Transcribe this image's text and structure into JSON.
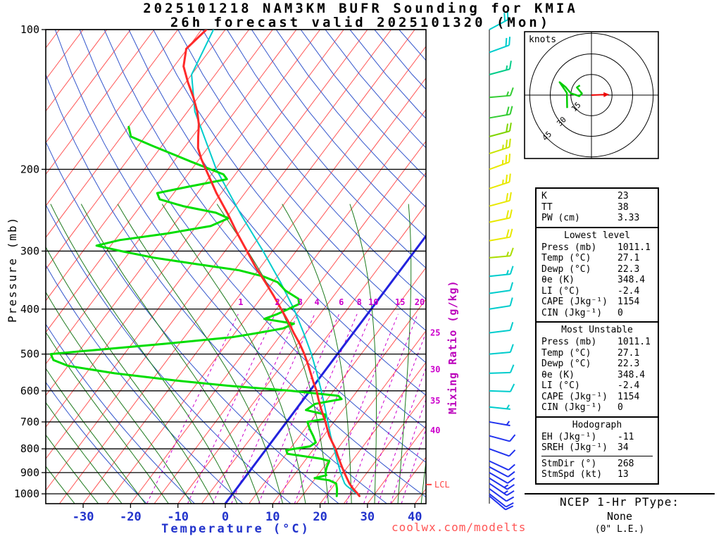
{
  "title": {
    "line1": "2025101218 NAM3KM BUFR Sounding for KMIA",
    "line2": "26h forecast valid 2025101320 (Mon)"
  },
  "watermark": "coolwx.com/modelts",
  "axes": {
    "pressure_label": "Pressure (mb)",
    "temperature_label": "Temperature (°C)",
    "mixing_ratio_label": "Mixing Ratio (g/kg)",
    "pressure_ticks": [
      100,
      200,
      300,
      400,
      500,
      600,
      700,
      800,
      900,
      1000
    ],
    "temperature_ticks": [
      -30,
      -20,
      -10,
      0,
      10,
      20,
      30,
      40
    ],
    "lcl_label": "LCL"
  },
  "chart_data": {
    "type": "line",
    "diagram": "skew-t log-p sounding",
    "pressure_range_mb": [
      100,
      1050
    ],
    "temperature_axis_c": [
      -30,
      40
    ],
    "highlight_isotherm_c": 0,
    "lcl_pressure_mb": 955,
    "mixing_ratio_lines_g_kg": [
      1,
      2,
      3,
      4,
      6,
      8,
      10,
      15,
      20,
      25,
      30,
      35,
      40
    ],
    "series": [
      {
        "name": "temperature",
        "color": "#FF2A2A",
        "width": 3,
        "points_p_t": [
          [
            1011,
            27.1
          ],
          [
            1000,
            26.4
          ],
          [
            975,
            24.6
          ],
          [
            950,
            23.0
          ],
          [
            925,
            21.6
          ],
          [
            900,
            20.2
          ],
          [
            875,
            18.8
          ],
          [
            850,
            17.4
          ],
          [
            825,
            16.0
          ],
          [
            800,
            14.6
          ],
          [
            775,
            12.9
          ],
          [
            750,
            11.2
          ],
          [
            725,
            9.7
          ],
          [
            700,
            8.2
          ],
          [
            675,
            6.5
          ],
          [
            650,
            4.8
          ],
          [
            625,
            3.1
          ],
          [
            600,
            1.4
          ],
          [
            575,
            -0.6
          ],
          [
            550,
            -2.6
          ],
          [
            525,
            -4.7
          ],
          [
            500,
            -7.0
          ],
          [
            475,
            -9.6
          ],
          [
            450,
            -12.6
          ],
          [
            425,
            -15.6
          ],
          [
            400,
            -19.0
          ],
          [
            375,
            -22.6
          ],
          [
            350,
            -26.6
          ],
          [
            325,
            -31.0
          ],
          [
            300,
            -35.4
          ],
          [
            275,
            -40.2
          ],
          [
            250,
            -45.2
          ],
          [
            225,
            -51.0
          ],
          [
            200,
            -57.0
          ],
          [
            190,
            -59.6
          ],
          [
            180,
            -62.0
          ],
          [
            170,
            -63.8
          ],
          [
            160,
            -65.6
          ],
          [
            150,
            -68.0
          ],
          [
            140,
            -71.0
          ],
          [
            130,
            -74.5
          ],
          [
            120,
            -78.0
          ],
          [
            110,
            -80.2
          ],
          [
            100,
            -79.0
          ]
        ]
      },
      {
        "name": "dewpoint",
        "color": "#00DD00",
        "width": 3,
        "points_p_t": [
          [
            1011,
            22.3
          ],
          [
            1000,
            22.0
          ],
          [
            975,
            21.2
          ],
          [
            950,
            20.2
          ],
          [
            935,
            18.2
          ],
          [
            925,
            14.8
          ],
          [
            912,
            16.8
          ],
          [
            900,
            16.2
          ],
          [
            875,
            15.6
          ],
          [
            850,
            15.2
          ],
          [
            840,
            13.0
          ],
          [
            820,
            5.2
          ],
          [
            805,
            4.4
          ],
          [
            790,
            8.8
          ],
          [
            775,
            9.4
          ],
          [
            750,
            7.8
          ],
          [
            725,
            6.0
          ],
          [
            700,
            4.4
          ],
          [
            690,
            7.6
          ],
          [
            675,
            7.0
          ],
          [
            660,
            2.2
          ],
          [
            640,
            3.2
          ],
          [
            625,
            8.0
          ],
          [
            615,
            6.8
          ],
          [
            600,
            -4.0
          ],
          [
            585,
            -18.0
          ],
          [
            570,
            -30.0
          ],
          [
            550,
            -44.0
          ],
          [
            530,
            -55.0
          ],
          [
            515,
            -59.0
          ],
          [
            500,
            -60.5
          ],
          [
            488,
            -50.0
          ],
          [
            475,
            -38.0
          ],
          [
            460,
            -25.0
          ],
          [
            450,
            -20.0
          ],
          [
            440,
            -15.5
          ],
          [
            430,
            -14.0
          ],
          [
            420,
            -21.0
          ],
          [
            410,
            -19.0
          ],
          [
            400,
            -17.5
          ],
          [
            390,
            -16.0
          ],
          [
            380,
            -17.0
          ],
          [
            365,
            -21.0
          ],
          [
            350,
            -24.0
          ],
          [
            340,
            -28.0
          ],
          [
            330,
            -34.0
          ],
          [
            320,
            -44.0
          ],
          [
            310,
            -54.0
          ],
          [
            300,
            -62.0
          ],
          [
            292,
            -68.0
          ],
          [
            284,
            -64.0
          ],
          [
            275,
            -55.0
          ],
          [
            265,
            -47.0
          ],
          [
            255,
            -44.5
          ],
          [
            248,
            -48.0
          ],
          [
            240,
            -56.0
          ],
          [
            232,
            -62.0
          ],
          [
            225,
            -63.5
          ],
          [
            218,
            -58.0
          ],
          [
            210,
            -51.0
          ],
          [
            205,
            -52.5
          ],
          [
            200,
            -56.0
          ],
          [
            193,
            -61.0
          ],
          [
            186,
            -66.0
          ],
          [
            178,
            -72.0
          ],
          [
            170,
            -78.0
          ],
          [
            162,
            -80.0
          ]
        ]
      },
      {
        "name": "parcel",
        "color": "#00CCCC",
        "width": 2,
        "points_p_t": [
          [
            1011,
            27.1
          ],
          [
            985,
            24.9
          ],
          [
            960,
            22.7
          ],
          [
            950,
            22.0
          ],
          [
            925,
            20.7
          ],
          [
            900,
            19.4
          ],
          [
            850,
            16.9
          ],
          [
            800,
            14.3
          ],
          [
            750,
            11.5
          ],
          [
            700,
            8.7
          ],
          [
            650,
            5.7
          ],
          [
            600,
            2.4
          ],
          [
            550,
            -1.3
          ],
          [
            500,
            -5.5
          ],
          [
            450,
            -10.5
          ],
          [
            400,
            -16.3
          ],
          [
            350,
            -23.4
          ],
          [
            300,
            -32.0
          ],
          [
            250,
            -42.5
          ],
          [
            200,
            -54.8
          ],
          [
            150,
            -68.5
          ],
          [
            125,
            -75.0
          ],
          [
            100,
            -77.5
          ]
        ]
      }
    ],
    "wind_barbs": [
      {
        "p": 1011,
        "dir": 130,
        "spd": 10,
        "color": "#2233EE"
      },
      {
        "p": 1000,
        "dir": 128,
        "spd": 11,
        "color": "#2233EE"
      },
      {
        "p": 975,
        "dir": 126,
        "spd": 12,
        "color": "#2233EE"
      },
      {
        "p": 950,
        "dir": 124,
        "spd": 13,
        "color": "#2233EE"
      },
      {
        "p": 925,
        "dir": 122,
        "spd": 13,
        "color": "#2233EE"
      },
      {
        "p": 900,
        "dir": 120,
        "spd": 12,
        "color": "#2233EE"
      },
      {
        "p": 875,
        "dir": 118,
        "spd": 11,
        "color": "#2233EE"
      },
      {
        "p": 850,
        "dir": 115,
        "spd": 10,
        "color": "#2233EE"
      },
      {
        "p": 800,
        "dir": 110,
        "spd": 9,
        "color": "#2233EE"
      },
      {
        "p": 750,
        "dir": 105,
        "spd": 8,
        "color": "#2233EE"
      },
      {
        "p": 700,
        "dir": 100,
        "spd": 7,
        "color": "#2233EE"
      },
      {
        "p": 650,
        "dir": 96,
        "spd": 7,
        "color": "#00CCCC"
      },
      {
        "p": 600,
        "dir": 92,
        "spd": 8,
        "color": "#00CCCC"
      },
      {
        "p": 550,
        "dir": 88,
        "spd": 8,
        "color": "#00CCCC"
      },
      {
        "p": 500,
        "dir": 85,
        "spd": 9,
        "color": "#00CCCC"
      },
      {
        "p": 450,
        "dir": 83,
        "spd": 10,
        "color": "#00CCCC"
      },
      {
        "p": 400,
        "dir": 81,
        "spd": 11,
        "color": "#00CCCC"
      },
      {
        "p": 370,
        "dir": 82,
        "spd": 12,
        "color": "#00CCCC"
      },
      {
        "p": 340,
        "dir": 84,
        "spd": 13,
        "color": "#00CCCC"
      },
      {
        "p": 310,
        "dir": 85,
        "spd": 15,
        "color": "#AADD00"
      },
      {
        "p": 285,
        "dir": 80,
        "spd": 18,
        "color": "#E8E800"
      },
      {
        "p": 260,
        "dir": 78,
        "spd": 20,
        "color": "#E8E800"
      },
      {
        "p": 240,
        "dir": 75,
        "spd": 22,
        "color": "#E8E800"
      },
      {
        "p": 220,
        "dir": 72,
        "spd": 23,
        "color": "#E8E800"
      },
      {
        "p": 200,
        "dir": 70,
        "spd": 25,
        "color": "#E8E800"
      },
      {
        "p": 185,
        "dir": 72,
        "spd": 23,
        "color": "#C8E400"
      },
      {
        "p": 170,
        "dir": 75,
        "spd": 21,
        "color": "#7FD400"
      },
      {
        "p": 155,
        "dir": 80,
        "spd": 19,
        "color": "#33CC33"
      },
      {
        "p": 140,
        "dir": 85,
        "spd": 17,
        "color": "#33CC33"
      },
      {
        "p": 125,
        "dir": 75,
        "spd": 16,
        "color": "#00CC88"
      },
      {
        "p": 112,
        "dir": 70,
        "spd": 18,
        "color": "#00CCCC"
      },
      {
        "p": 100,
        "dir": 62,
        "spd": 21,
        "color": "#00CCCC"
      }
    ],
    "hodograph": {
      "unit_label": "knots",
      "rings_kt": [
        15,
        30,
        45
      ],
      "trace_color": "#00CC00",
      "trace_uv_kt": [
        [
          -8.4,
          7.1
        ],
        [
          -10.6,
          5.6
        ],
        [
          -6.9,
          1.2
        ],
        [
          -8.9,
          -0.8
        ],
        [
          -11,
          0
        ],
        [
          -15,
          1.3
        ],
        [
          -19,
          6
        ],
        [
          -23.2,
          9.4
        ],
        [
          -17.9,
          1.6
        ],
        [
          -17.7,
          -9.4
        ]
      ],
      "storm_motion": {
        "dir_deg": 268,
        "spd_kt": 13,
        "arrow_color": "#EE0000"
      }
    },
    "background": {
      "isotherm_color": "#FF5555",
      "isotherm_step_c": 5,
      "dry_adiabat_color": "#3355CC",
      "moist_adiabat_color": "#1E7A1E",
      "mixing_ratio_color": "#CC00CC",
      "zero_isotherm_color": "#2222DD",
      "grid_color": "#000000"
    }
  },
  "indices": {
    "summary": [
      {
        "label": "K",
        "value": "23"
      },
      {
        "label": "TT",
        "value": "38"
      },
      {
        "label": "PW (cm)",
        "value": "3.33"
      }
    ],
    "sections": [
      {
        "header": "Lowest level",
        "rows": [
          {
            "label": "Press (mb)",
            "value": "1011.1"
          },
          {
            "label": "Temp (°C)",
            "value": "27.1"
          },
          {
            "label": "Dewp (°C)",
            "value": "22.3"
          },
          {
            "label": "θe (K)",
            "value": "348.4"
          },
          {
            "label": "LI (°C)",
            "value": "-2.4"
          },
          {
            "label": "CAPE (Jkg⁻¹)",
            "value": "1154"
          },
          {
            "label": "CIN (Jkg⁻¹)",
            "value": "0"
          }
        ]
      },
      {
        "header": "Most Unstable",
        "rows": [
          {
            "label": "Press (mb)",
            "value": "1011.1"
          },
          {
            "label": "Temp (°C)",
            "value": "27.1"
          },
          {
            "label": "Dewp (°C)",
            "value": "22.3"
          },
          {
            "label": "θe (K)",
            "value": "348.4"
          },
          {
            "label": "LI (°C)",
            "value": "-2.4"
          },
          {
            "label": "CAPE (Jkg⁻¹)",
            "value": "1154"
          },
          {
            "label": "CIN (Jkg⁻¹)",
            "value": "0"
          }
        ]
      },
      {
        "header": "Hodograph",
        "rows": [
          {
            "label": "EH (Jkg⁻¹)",
            "value": "-11"
          },
          {
            "label": "SREH (Jkg⁻¹)",
            "value": "34"
          }
        ],
        "rows2": [
          {
            "label": "StmDir (°)",
            "value": "268"
          },
          {
            "label": "StmSpd (kt)",
            "value": "13"
          }
        ]
      }
    ]
  },
  "ptype": {
    "title": "NCEP 1-Hr PType:",
    "value": "None",
    "note": "(0\" L.E.)"
  }
}
